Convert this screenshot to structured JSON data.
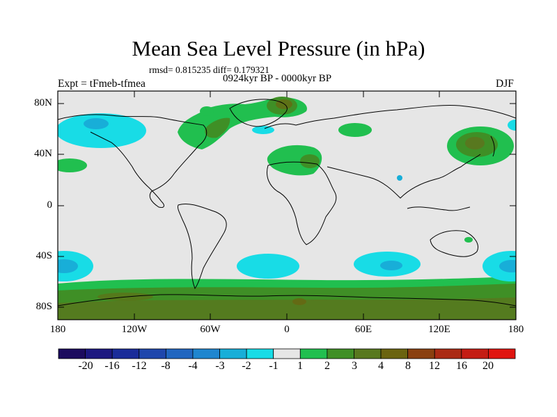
{
  "title": "Mean Sea Level Pressure (in hPa)",
  "stats": "rmsd= 0.815235 diff= 0.179321",
  "period": "0924kyr BP - 0000kyr BP",
  "experiment": "Expt = tFmeb-tfmea",
  "season": "DJF",
  "axes": {
    "lat_labels": [
      "80N",
      "40N",
      "0",
      "40S",
      "80S"
    ],
    "lon_labels": [
      "180",
      "120W",
      "60W",
      "0",
      "60E",
      "120E",
      "180"
    ]
  },
  "colorbar": {
    "labels": [
      "-20",
      "-16",
      "-12",
      "-8",
      "-4",
      "-3",
      "-2",
      "-1",
      "1",
      "2",
      "3",
      "4",
      "8",
      "12",
      "16",
      "20"
    ],
    "colors": [
      "#1c0b5e",
      "#1d1880",
      "#1a2c99",
      "#1f47ac",
      "#2166c0",
      "#1f86cf",
      "#18aed8",
      "#18dce6",
      "#e6e6e6",
      "#21bf4f",
      "#3f8f26",
      "#58781f",
      "#6b6410",
      "#8a4010",
      "#aa2a14",
      "#c41d14",
      "#e01510"
    ]
  },
  "colors": {
    "background": "#e6e6e6",
    "negative_weak": "#18dce6",
    "negative_mid": "#18aed8",
    "positive_weak": "#21bf4f",
    "positive_mid": "#3f8f26",
    "positive_strong": "#58781f",
    "positive_max": "#6b6410"
  }
}
